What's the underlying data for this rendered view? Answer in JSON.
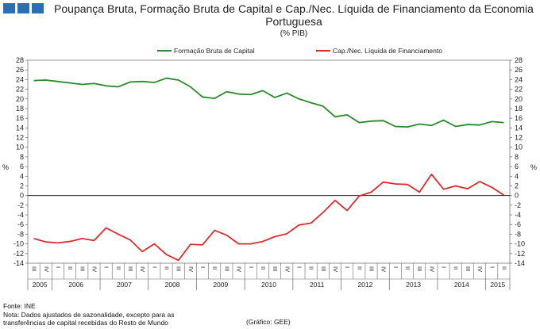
{
  "logo": {
    "color": "#2a6fb5"
  },
  "chart_data": {
    "type": "line",
    "title": "Poupança Bruta, Formação Bruta de Capital e Cap./Nec. Líquida de Financiamento da Economia Portuguesa",
    "subtitle": "(% PIB)",
    "ylabel_left": "%",
    "ylabel_right": "%",
    "ylim": [
      -14,
      28
    ],
    "yticks": [
      28,
      26,
      24,
      22,
      20,
      18,
      16,
      14,
      12,
      10,
      8,
      6,
      4,
      2,
      0,
      -2,
      -4,
      -6,
      -8,
      -10,
      -12,
      -14
    ],
    "quarter_labels": [
      "III",
      "IV",
      "I",
      "II",
      "III",
      "IV",
      "I",
      "II",
      "III",
      "IV",
      "I",
      "II",
      "III",
      "IV",
      "I",
      "II",
      "III",
      "IV",
      "I",
      "II",
      "III",
      "IV",
      "I",
      "II",
      "III",
      "IV",
      "I",
      "II",
      "III",
      "IV",
      "I",
      "II",
      "III",
      "IV",
      "I",
      "II",
      "III",
      "IV",
      "I",
      "II"
    ],
    "years": [
      {
        "label": "2005",
        "quarters": 2
      },
      {
        "label": "2006",
        "quarters": 4
      },
      {
        "label": "2007",
        "quarters": 4
      },
      {
        "label": "2008",
        "quarters": 4
      },
      {
        "label": "2009",
        "quarters": 4
      },
      {
        "label": "2010",
        "quarters": 4
      },
      {
        "label": "2011",
        "quarters": 4
      },
      {
        "label": "2012",
        "quarters": 4
      },
      {
        "label": "2013",
        "quarters": 4
      },
      {
        "label": "2014",
        "quarters": 4
      },
      {
        "label": "2015",
        "quarters": 2
      }
    ],
    "series": [
      {
        "name": "Formação Bruta de Capital",
        "color": "#2a8a2a",
        "values": [
          23.8,
          23.9,
          23.6,
          23.3,
          23.0,
          23.2,
          22.7,
          22.5,
          23.5,
          23.6,
          23.4,
          24.3,
          23.9,
          22.5,
          20.4,
          20.1,
          21.5,
          21.0,
          20.9,
          21.7,
          20.3,
          21.2,
          20.0,
          19.2,
          18.5,
          16.3,
          16.7,
          15.1,
          15.4,
          15.5,
          14.3,
          14.2,
          14.8,
          14.5,
          15.6,
          14.3,
          14.7,
          14.6,
          15.3,
          15.1
        ]
      },
      {
        "name": "Cap./Nec. Líquida de Financiamento",
        "color": "#dd2a2a",
        "values": [
          -8.9,
          -9.6,
          -9.8,
          -9.5,
          -8.9,
          -9.3,
          -6.7,
          -8.0,
          -9.2,
          -11.6,
          -10.0,
          -12.2,
          -13.4,
          -10.1,
          -10.2,
          -7.2,
          -8.2,
          -10.0,
          -10.0,
          -9.5,
          -8.5,
          -7.9,
          -6.1,
          -5.7,
          -3.5,
          -1.0,
          -3.1,
          -0.1,
          0.7,
          2.8,
          2.4,
          2.3,
          0.7,
          4.4,
          1.3,
          2.0,
          1.4,
          2.9,
          1.7,
          0.1
        ]
      }
    ]
  },
  "footer": {
    "source": "Fonte: INE",
    "note_line1": "Nota: Dados ajustados de sazonalidade, excepto para as",
    "note_line2": "transferências de capital recebidas do Resto de Mundo",
    "credit": "(Gráfico: GEE)"
  }
}
